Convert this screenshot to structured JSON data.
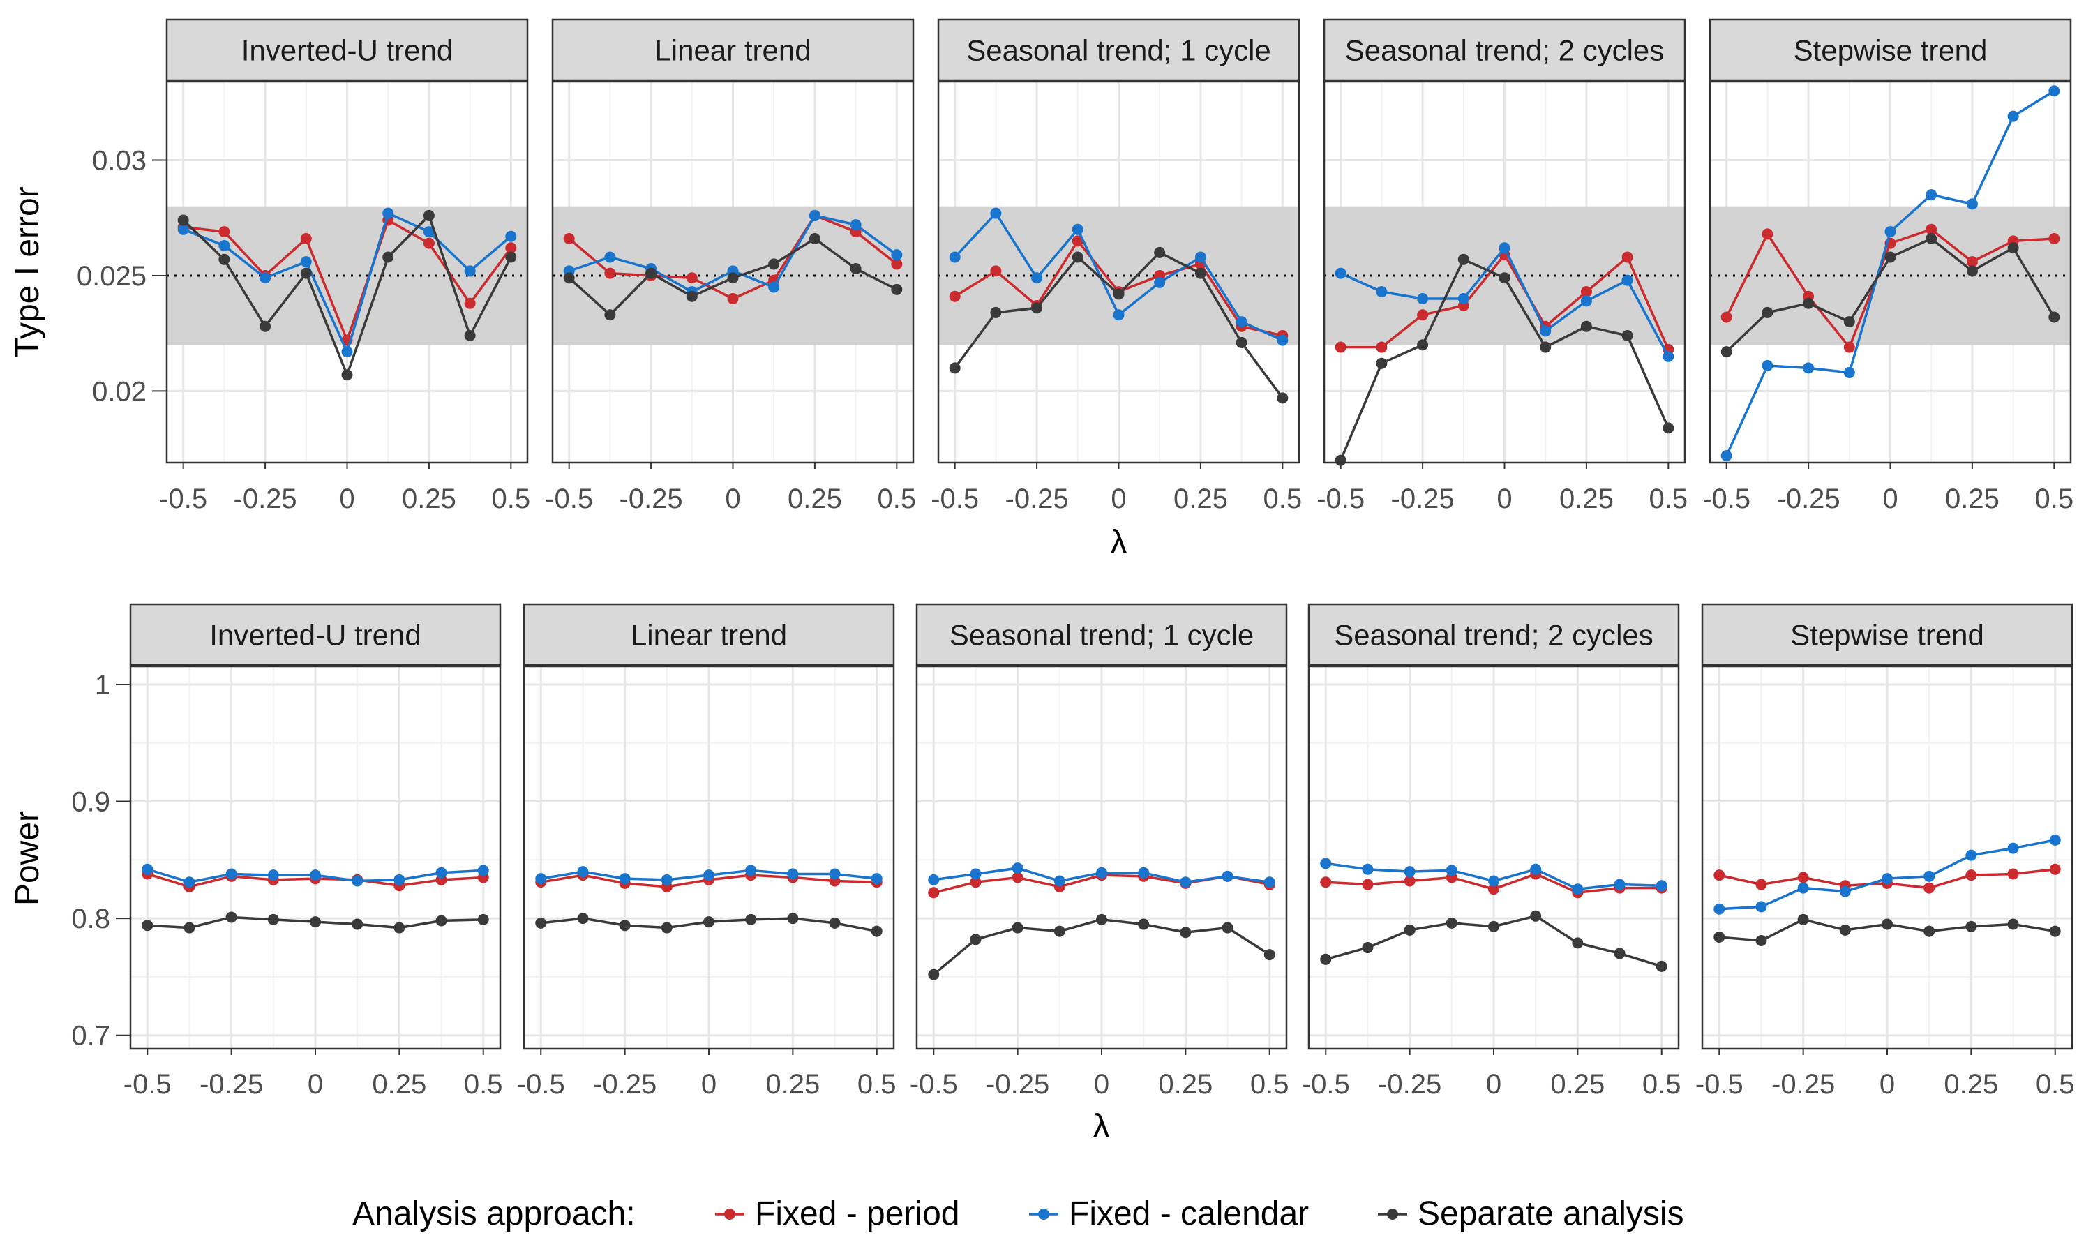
{
  "colors": {
    "fixed_period": "#CB2A2E",
    "fixed_calendar": "#1874CD",
    "separate_analysis": "#3A3A3A",
    "strip_fill": "#D9D9D9",
    "band_fill": "#D3D3D3",
    "grid_major": "#E6E6E6",
    "grid_minor": "#F2F2F2",
    "panel_border": "#333333"
  },
  "legend": {
    "title": "Analysis approach:",
    "position": "bottom",
    "entries": [
      "Fixed - period",
      "Fixed - calendar",
      "Separate analysis"
    ]
  },
  "chart_data": [
    {
      "type": "line",
      "ylabel": "Type I error",
      "xlabel": "λ",
      "x": [
        -0.5,
        -0.375,
        -0.25,
        -0.125,
        0,
        0.125,
        0.25,
        0.375,
        0.5
      ],
      "xticks": [
        "-0.5",
        "-0.25",
        "0",
        "0.25",
        "0.5"
      ],
      "yticks": [
        "0.02",
        "0.025",
        "0.03"
      ],
      "ylim": [
        0.0169,
        0.0334
      ],
      "reference_line": 0.025,
      "reference_band": [
        0.022,
        0.028
      ],
      "grid": true,
      "panels": [
        {
          "title": "Inverted-U trend",
          "series": [
            {
              "name": "Fixed - period",
              "values": [
                0.0271,
                0.0269,
                0.025,
                0.0266,
                0.0222,
                0.0274,
                0.0264,
                0.0238,
                0.0262
              ]
            },
            {
              "name": "Fixed - calendar",
              "values": [
                0.027,
                0.0263,
                0.0249,
                0.0256,
                0.0217,
                0.0277,
                0.0269,
                0.0252,
                0.0267
              ]
            },
            {
              "name": "Separate analysis",
              "values": [
                0.0274,
                0.0257,
                0.0228,
                0.0251,
                0.0207,
                0.0258,
                0.0276,
                0.0224,
                0.0258
              ]
            }
          ]
        },
        {
          "title": "Linear trend",
          "series": [
            {
              "name": "Fixed - period",
              "values": [
                0.0266,
                0.0251,
                0.025,
                0.0249,
                0.024,
                0.0248,
                0.0276,
                0.0269,
                0.0255
              ]
            },
            {
              "name": "Fixed - calendar",
              "values": [
                0.0252,
                0.0258,
                0.0253,
                0.0243,
                0.0252,
                0.0245,
                0.0276,
                0.0272,
                0.0259
              ]
            },
            {
              "name": "Separate analysis",
              "values": [
                0.0249,
                0.0233,
                0.0251,
                0.0241,
                0.0249,
                0.0255,
                0.0266,
                0.0253,
                0.0244
              ]
            }
          ]
        },
        {
          "title": "Seasonal trend; 1 cycle",
          "series": [
            {
              "name": "Fixed - period",
              "values": [
                0.0241,
                0.0252,
                0.0237,
                0.0265,
                0.0243,
                0.025,
                0.0255,
                0.0228,
                0.0224
              ]
            },
            {
              "name": "Fixed - calendar",
              "values": [
                0.0258,
                0.0277,
                0.0249,
                0.027,
                0.0233,
                0.0247,
                0.0258,
                0.023,
                0.0222
              ]
            },
            {
              "name": "Separate analysis",
              "values": [
                0.021,
                0.0234,
                0.0236,
                0.0258,
                0.0242,
                0.026,
                0.0251,
                0.0221,
                0.0197
              ]
            }
          ]
        },
        {
          "title": "Seasonal trend; 2 cycles",
          "series": [
            {
              "name": "Fixed - period",
              "values": [
                0.0219,
                0.0219,
                0.0233,
                0.0237,
                0.0259,
                0.0228,
                0.0243,
                0.0258,
                0.0218
              ]
            },
            {
              "name": "Fixed - calendar",
              "values": [
                0.0251,
                0.0243,
                0.024,
                0.024,
                0.0262,
                0.0226,
                0.0239,
                0.0248,
                0.0215
              ]
            },
            {
              "name": "Separate analysis",
              "values": [
                0.017,
                0.0212,
                0.022,
                0.0257,
                0.0249,
                0.0219,
                0.0228,
                0.0224,
                0.0184
              ]
            }
          ]
        },
        {
          "title": "Stepwise trend",
          "series": [
            {
              "name": "Fixed - period",
              "values": [
                0.0232,
                0.0268,
                0.0241,
                0.0219,
                0.0264,
                0.027,
                0.0256,
                0.0265,
                0.0266
              ]
            },
            {
              "name": "Fixed - calendar",
              "values": [
                0.0172,
                0.0211,
                0.021,
                0.0208,
                0.0269,
                0.0285,
                0.0281,
                0.0319,
                0.033
              ]
            },
            {
              "name": "Separate analysis",
              "values": [
                0.0217,
                0.0234,
                0.0238,
                0.023,
                0.0258,
                0.0266,
                0.0252,
                0.0262,
                0.0232
              ]
            }
          ]
        }
      ]
    },
    {
      "type": "line",
      "ylabel": "Power",
      "xlabel": "λ",
      "x": [
        -0.5,
        -0.375,
        -0.25,
        -0.125,
        0,
        0.125,
        0.25,
        0.375,
        0.5
      ],
      "xticks": [
        "-0.5",
        "-0.25",
        "0",
        "0.25",
        "0.5"
      ],
      "yticks": [
        "0.7",
        "0.8",
        "0.9",
        "1"
      ],
      "ylim": [
        0.6885,
        1.0155
      ],
      "grid": true,
      "panels": [
        {
          "title": "Inverted-U trend",
          "series": [
            {
              "name": "Fixed - period",
              "values": [
                0.838,
                0.827,
                0.836,
                0.833,
                0.834,
                0.833,
                0.828,
                0.833,
                0.835
              ]
            },
            {
              "name": "Fixed - calendar",
              "values": [
                0.842,
                0.831,
                0.838,
                0.837,
                0.837,
                0.832,
                0.833,
                0.839,
                0.841
              ]
            },
            {
              "name": "Separate analysis",
              "values": [
                0.794,
                0.792,
                0.801,
                0.799,
                0.797,
                0.795,
                0.792,
                0.798,
                0.799
              ]
            }
          ]
        },
        {
          "title": "Linear trend",
          "series": [
            {
              "name": "Fixed - period",
              "values": [
                0.831,
                0.837,
                0.83,
                0.827,
                0.833,
                0.837,
                0.835,
                0.832,
                0.831
              ]
            },
            {
              "name": "Fixed - calendar",
              "values": [
                0.834,
                0.84,
                0.834,
                0.833,
                0.837,
                0.841,
                0.838,
                0.838,
                0.834
              ]
            },
            {
              "name": "Separate analysis",
              "values": [
                0.796,
                0.8,
                0.794,
                0.792,
                0.797,
                0.799,
                0.8,
                0.796,
                0.789
              ]
            }
          ]
        },
        {
          "title": "Seasonal trend; 1 cycle",
          "series": [
            {
              "name": "Fixed - period",
              "values": [
                0.822,
                0.831,
                0.835,
                0.827,
                0.837,
                0.836,
                0.83,
                0.836,
                0.829
              ]
            },
            {
              "name": "Fixed - calendar",
              "values": [
                0.833,
                0.838,
                0.843,
                0.832,
                0.839,
                0.839,
                0.831,
                0.836,
                0.831
              ]
            },
            {
              "name": "Separate analysis",
              "values": [
                0.752,
                0.782,
                0.792,
                0.789,
                0.799,
                0.795,
                0.788,
                0.792,
                0.769
              ]
            }
          ]
        },
        {
          "title": "Seasonal trend; 2 cycles",
          "series": [
            {
              "name": "Fixed - period",
              "values": [
                0.831,
                0.829,
                0.832,
                0.835,
                0.825,
                0.838,
                0.822,
                0.826,
                0.826
              ]
            },
            {
              "name": "Fixed - calendar",
              "values": [
                0.847,
                0.842,
                0.84,
                0.841,
                0.832,
                0.842,
                0.825,
                0.829,
                0.828
              ]
            },
            {
              "name": "Separate analysis",
              "values": [
                0.765,
                0.775,
                0.79,
                0.796,
                0.793,
                0.802,
                0.779,
                0.77,
                0.759
              ]
            }
          ]
        },
        {
          "title": "Stepwise trend",
          "series": [
            {
              "name": "Fixed - period",
              "values": [
                0.837,
                0.829,
                0.835,
                0.828,
                0.83,
                0.826,
                0.837,
                0.838,
                0.842
              ]
            },
            {
              "name": "Fixed - calendar",
              "values": [
                0.808,
                0.81,
                0.826,
                0.823,
                0.834,
                0.836,
                0.854,
                0.86,
                0.867
              ]
            },
            {
              "name": "Separate analysis",
              "values": [
                0.784,
                0.781,
                0.799,
                0.79,
                0.795,
                0.789,
                0.793,
                0.795,
                0.789
              ]
            }
          ]
        }
      ]
    }
  ]
}
